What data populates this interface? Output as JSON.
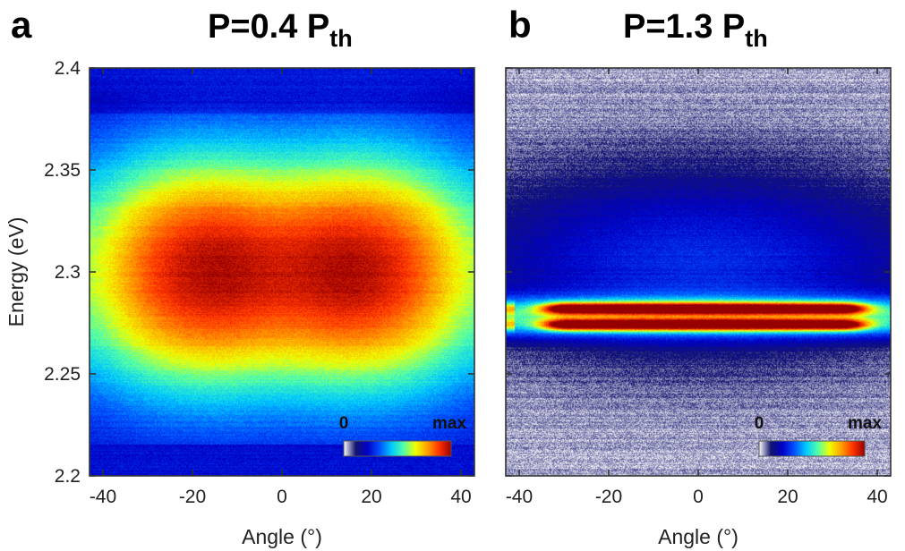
{
  "chart_data": [
    {
      "type": "heatmap",
      "panel": "a",
      "title": "P=0.4 P",
      "title_subscript": "th",
      "xlabel": "Angle (°)",
      "ylabel": "Energy (eV)",
      "xlim": [
        -43,
        43
      ],
      "ylim": [
        2.2,
        2.4
      ],
      "xticks": [
        -40,
        -20,
        0,
        20,
        40
      ],
      "xtick_labels": [
        "-40",
        "-20",
        "0",
        "20",
        "40"
      ],
      "yticks": [
        2.2,
        2.25,
        2.3,
        2.35,
        2.4
      ],
      "ytick_labels": [
        "2.2",
        "2.25",
        "2.3",
        "2.35",
        "2.4"
      ],
      "colorbar": {
        "min_label": "0",
        "max_label": "max",
        "colormap": "white-blue-cyan-yellow-red"
      },
      "description_values": {
        "emission_center_eV": 2.3,
        "emission_halfwidth_eV": 0.045,
        "angular_halfwidth_deg": 37,
        "peak_lobes_deg": [
          -15,
          15
        ],
        "peak_intensity_fraction": 0.92
      }
    },
    {
      "type": "heatmap",
      "panel": "b",
      "title": "P=1.3 P",
      "title_subscript": "th",
      "xlabel": "Angle (°)",
      "ylabel": "",
      "xlim": [
        -43,
        43
      ],
      "ylim": [
        2.2,
        2.4
      ],
      "xticks": [
        -40,
        -20,
        0,
        20,
        40
      ],
      "xtick_labels": [
        "-40",
        "-20",
        "0",
        "20",
        "40"
      ],
      "yticks": [
        2.2,
        2.25,
        2.3,
        2.35,
        2.4
      ],
      "colorbar": {
        "min_label": "0",
        "max_label": "max",
        "colormap": "white-blue-cyan-yellow-red"
      },
      "description_values": {
        "lasing_lines_eV": [
          2.282,
          2.274
        ],
        "lasing_angular_range_deg": [
          -35,
          38
        ],
        "background_center_eV": 2.305,
        "peak_intensity_fraction": 1.0
      }
    }
  ],
  "colors": {
    "colormap_stops": [
      "#ffffff",
      "#14146e",
      "#0000c8",
      "#0050ff",
      "#00c8ff",
      "#50ffaa",
      "#f0ff00",
      "#ffa000",
      "#ff3200",
      "#960000"
    ]
  }
}
